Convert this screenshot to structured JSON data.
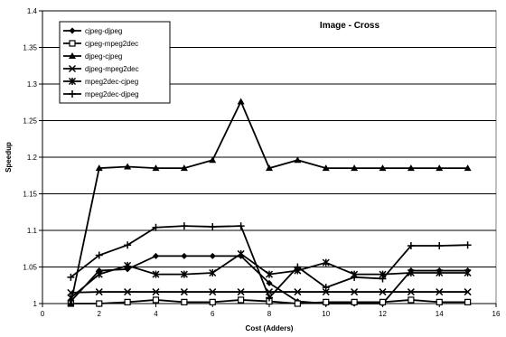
{
  "chart_data": {
    "type": "line",
    "title": "Image - Cross",
    "xlabel": "Cost (Adders)",
    "ylabel": "Speedup",
    "xlim": [
      0,
      16
    ],
    "ylim": [
      1,
      1.4
    ],
    "xticks": [
      0,
      2,
      4,
      6,
      8,
      10,
      12,
      14,
      16
    ],
    "yticks": [
      1,
      1.05,
      1.1,
      1.15,
      1.2,
      1.25,
      1.3,
      1.35,
      1.4
    ],
    "xtick_labels": [
      "0",
      "2",
      "4",
      "6",
      "8",
      "10",
      "12",
      "14",
      "16"
    ],
    "ytick_labels": [
      "1",
      "1.05",
      "1.1",
      "1.15",
      "1.2",
      "1.25",
      "1.3",
      "1.35",
      "1.4"
    ],
    "grid": "horizontal",
    "legend_position": "top-left",
    "x": [
      1,
      2,
      3,
      4,
      5,
      6,
      7,
      8,
      9,
      10,
      11,
      12,
      13,
      14,
      15
    ],
    "series": [
      {
        "name": "cjpeg-djpeg",
        "marker": "diamond",
        "values": [
          1.003,
          1.045,
          1.047,
          1.065,
          1.065,
          1.065,
          1.065,
          1.028,
          1.003,
          1.0,
          1.0,
          1.0,
          1.045,
          1.045,
          1.045
        ]
      },
      {
        "name": "cjpeg-mpeg2dec",
        "marker": "square",
        "values": [
          1.0,
          1.0,
          1.002,
          1.005,
          1.002,
          1.002,
          1.005,
          1.003,
          1.0,
          1.002,
          1.002,
          1.002,
          1.005,
          1.002,
          1.002
        ]
      },
      {
        "name": "djpeg-cjpeg",
        "marker": "triangle",
        "values": [
          1.0,
          1.185,
          1.187,
          1.185,
          1.185,
          1.196,
          1.276,
          1.185,
          1.196,
          1.185,
          1.185,
          1.185,
          1.185,
          1.185,
          1.185
        ]
      },
      {
        "name": "djpeg-mpeg2dec",
        "marker": "x",
        "values": [
          1.015,
          1.016,
          1.016,
          1.016,
          1.016,
          1.016,
          1.016,
          1.016,
          1.016,
          1.016,
          1.016,
          1.016,
          1.016,
          1.016,
          1.016
        ]
      },
      {
        "name": "mpeg2dec-cjpeg",
        "marker": "star",
        "values": [
          1.008,
          1.04,
          1.052,
          1.04,
          1.04,
          1.042,
          1.068,
          1.04,
          1.045,
          1.056,
          1.04,
          1.04,
          1.042,
          1.042,
          1.042
        ]
      },
      {
        "name": "mpeg2dec-djpeg",
        "marker": "plus",
        "values": [
          1.036,
          1.066,
          1.08,
          1.104,
          1.106,
          1.105,
          1.106,
          1.008,
          1.05,
          1.022,
          1.036,
          1.034,
          1.079,
          1.079,
          1.08
        ]
      }
    ]
  }
}
